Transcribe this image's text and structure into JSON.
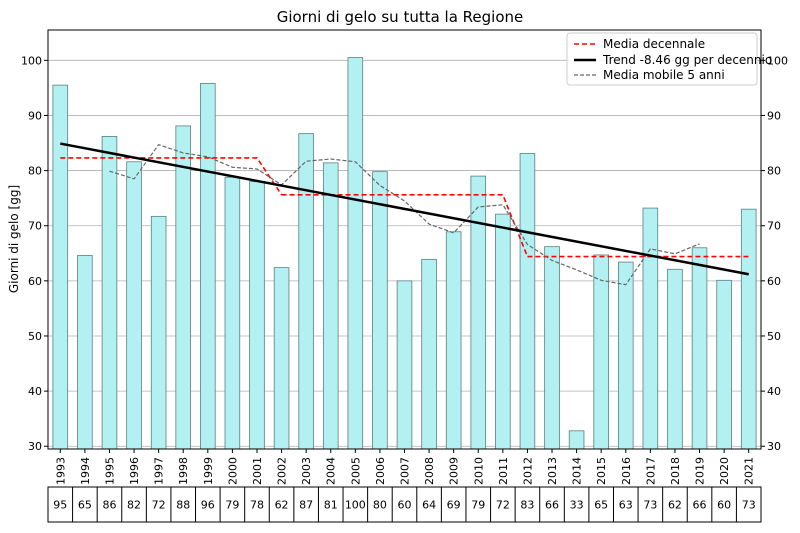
{
  "chart_data": {
    "type": "bar",
    "title": "Giorni di gelo su tutta la Regione",
    "ylabel": "Giorni di gelo [gg]",
    "xlabel": "",
    "ylim": [
      29.5,
      105.5
    ],
    "yticks": [
      30,
      40,
      50,
      60,
      70,
      80,
      90,
      100
    ],
    "grid": true,
    "legend_position": "top-right",
    "categories": [
      "1993",
      "1994",
      "1995",
      "1996",
      "1997",
      "1998",
      "1999",
      "2000",
      "2001",
      "2002",
      "2003",
      "2004",
      "2005",
      "2006",
      "2007",
      "2008",
      "2009",
      "2010",
      "2011",
      "2012",
      "2013",
      "2014",
      "2015",
      "2016",
      "2017",
      "2018",
      "2019",
      "2020",
      "2021"
    ],
    "values": [
      95.5,
      64.6,
      86.2,
      81.6,
      71.7,
      88.1,
      95.8,
      78.8,
      78.0,
      62.4,
      86.7,
      81.4,
      100.5,
      79.8,
      60.0,
      63.9,
      68.9,
      79.0,
      72.1,
      83.1,
      66.2,
      32.8,
      64.7,
      63.4,
      73.2,
      62.1,
      66.0,
      60.1,
      73.0
    ],
    "table_values": [
      "95",
      "65",
      "86",
      "82",
      "72",
      "88",
      "96",
      "79",
      "78",
      "62",
      "87",
      "81",
      "100",
      "80",
      "60",
      "64",
      "69",
      "79",
      "72",
      "83",
      "66",
      "33",
      "65",
      "63",
      "73",
      "62",
      "66",
      "60",
      "73"
    ],
    "series": [
      {
        "name": "Media decennale",
        "style": "dashed",
        "color": "#ff0000",
        "segments": [
          {
            "x_start": "1993",
            "x_end": "2001",
            "value": 82.3
          },
          {
            "x_start": "2002",
            "x_end": "2011",
            "value": 75.6
          },
          {
            "x_start": "2012",
            "x_end": "2021",
            "value": 64.4
          }
        ]
      },
      {
        "name": "Trend -8.46 gg per decennio",
        "style": "solid",
        "color": "#000000",
        "start": {
          "x": "1993",
          "y": 84.9
        },
        "end": {
          "x": "2021",
          "y": 61.2
        }
      },
      {
        "name": "Media mobile 5 anni",
        "style": "dashed",
        "color": "#666666",
        "x": [
          "1995",
          "1996",
          "1997",
          "1998",
          "1999",
          "2000",
          "2001",
          "2002",
          "2003",
          "2004",
          "2005",
          "2006",
          "2007",
          "2008",
          "2009",
          "2010",
          "2011",
          "2012",
          "2013",
          "2014",
          "2015",
          "2016",
          "2017",
          "2018",
          "2019"
        ],
        "values": [
          79.9,
          78.5,
          84.7,
          83.2,
          82.5,
          80.6,
          80.3,
          77.4,
          81.7,
          82.1,
          81.6,
          77.3,
          74.5,
          70.3,
          68.7,
          73.4,
          73.8,
          66.6,
          63.7,
          62.0,
          60.1,
          59.3,
          65.8,
          64.9,
          66.7
        ]
      }
    ],
    "colors": {
      "bar_fill": "#b3f0f2",
      "bar_edge": "#5a7f80",
      "grid": "#b0b0b0"
    }
  }
}
